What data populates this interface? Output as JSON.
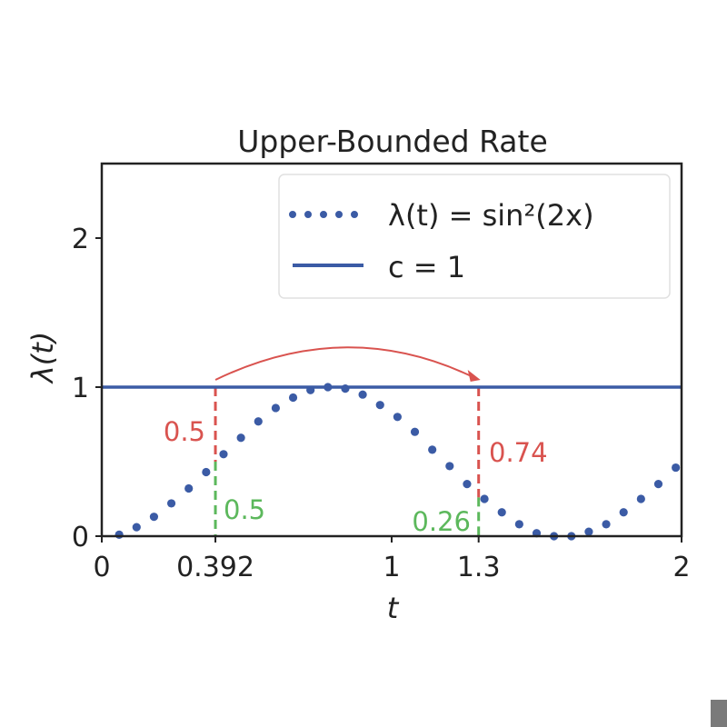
{
  "chart_data": {
    "type": "line",
    "title": "Upper-Bounded Rate",
    "xlabel": "t",
    "ylabel": "λ(t)",
    "xlim": [
      0,
      2
    ],
    "ylim": [
      0,
      2.5
    ],
    "x_ticks": [
      {
        "value": 0,
        "label": "0"
      },
      {
        "value": 0.392,
        "label": "0.392"
      },
      {
        "value": 1,
        "label": "1"
      },
      {
        "value": 1.3,
        "label": "1.3"
      },
      {
        "value": 2,
        "label": "2"
      }
    ],
    "y_ticks": [
      {
        "value": 0,
        "label": "0"
      },
      {
        "value": 1,
        "label": "1"
      },
      {
        "value": 2,
        "label": "2"
      }
    ],
    "grid": false,
    "legend_position": "top-right",
    "series": [
      {
        "name": "λ(t) = sin²(2x)",
        "style": "dotted",
        "color": "#3b5ba5",
        "x": [
          0.06,
          0.12,
          0.18,
          0.24,
          0.3,
          0.36,
          0.42,
          0.48,
          0.54,
          0.6,
          0.66,
          0.72,
          0.78,
          0.84,
          0.9,
          0.96,
          1.02,
          1.08,
          1.14,
          1.2,
          1.26,
          1.32,
          1.38,
          1.44,
          1.5,
          1.56,
          1.62,
          1.68,
          1.74,
          1.8,
          1.86,
          1.92,
          1.98
        ],
        "y": [
          0.01,
          0.06,
          0.13,
          0.22,
          0.32,
          0.43,
          0.55,
          0.66,
          0.77,
          0.86,
          0.93,
          0.98,
          1.0,
          0.99,
          0.95,
          0.88,
          0.8,
          0.7,
          0.58,
          0.47,
          0.35,
          0.25,
          0.16,
          0.08,
          0.02,
          0.0,
          0.0,
          0.03,
          0.08,
          0.16,
          0.25,
          0.35,
          0.46
        ]
      },
      {
        "name": "c = 1",
        "style": "solid",
        "color": "#3b5ba5",
        "x": [
          0,
          2
        ],
        "y": [
          1,
          1
        ]
      }
    ],
    "annotations": {
      "red_color": "#d9534f",
      "green_color": "#5cb85c",
      "left_red_label": "0.5",
      "left_green_label": "0.5",
      "right_red_label": "0.74",
      "right_green_label": "0.26",
      "markers": [
        {
          "x": 0.392,
          "curve_value": 0.5
        },
        {
          "x": 1.3,
          "curve_value": 0.26
        }
      ],
      "arrow": {
        "from_x": 0.392,
        "to_x": 1.3
      }
    }
  }
}
